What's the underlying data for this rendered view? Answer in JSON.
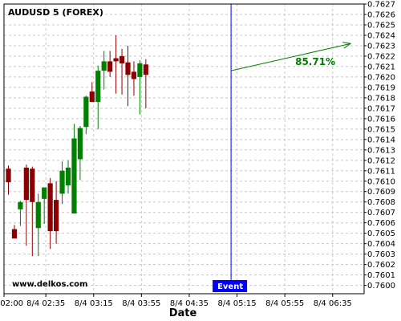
{
  "chart_data": {
    "type": "candlestick",
    "title": "AUDUSD 5 (FOREX)",
    "xlabel": "Date",
    "ylabel": "",
    "ylim": [
      0.75992,
      0.7627
    ],
    "y_ticks": [
      "0.7627",
      "0.7626",
      "0.7625",
      "0.7624",
      "0.7623",
      "0.7622",
      "0.7621",
      "0.7620",
      "0.7619",
      "0.7618",
      "0.7617",
      "0.7616",
      "0.7615",
      "0.7614",
      "0.7613",
      "0.7612",
      "0.7611",
      "0.7610",
      "0.7609",
      "0.7608",
      "0.7607",
      "0.7606",
      "0.7605",
      "0.7604",
      "0.7603",
      "0.7602",
      "0.7601",
      "0.7600"
    ],
    "x_ticks": [
      "8/4 02:00",
      "8/4 02:35",
      "8/4 03:15",
      "8/4 03:55",
      "8/4 04:35",
      "8/4 05:15",
      "8/4 05:55",
      "8/4 06:35"
    ],
    "grid": true,
    "colors": {
      "bull": "#008000",
      "bear": "#8b0000",
      "grid": "#c8c8c8",
      "event": "#0000ff",
      "arrow": "#008000"
    },
    "candles": [
      {
        "o": 0.76112,
        "h": 0.76115,
        "l": 0.76087,
        "c": 0.76099
      },
      {
        "o": 0.76054,
        "h": 0.76058,
        "l": 0.76045,
        "c": 0.76045
      },
      {
        "o": 0.76073,
        "h": 0.76081,
        "l": 0.76057,
        "c": 0.7608
      },
      {
        "o": 0.76113,
        "h": 0.76116,
        "l": 0.76038,
        "c": 0.76082
      },
      {
        "o": 0.76112,
        "h": 0.76114,
        "l": 0.76028,
        "c": 0.7608
      },
      {
        "o": 0.76055,
        "h": 0.76088,
        "l": 0.76028,
        "c": 0.7608
      },
      {
        "o": 0.76083,
        "h": 0.76094,
        "l": 0.76059,
        "c": 0.76094
      },
      {
        "o": 0.76098,
        "h": 0.76103,
        "l": 0.76035,
        "c": 0.76052
      },
      {
        "o": 0.76082,
        "h": 0.761,
        "l": 0.7604,
        "c": 0.76052
      },
      {
        "o": 0.76088,
        "h": 0.76119,
        "l": 0.76078,
        "c": 0.7611
      },
      {
        "o": 0.76096,
        "h": 0.7612,
        "l": 0.76088,
        "c": 0.76113
      },
      {
        "o": 0.76069,
        "h": 0.76155,
        "l": 0.76069,
        "c": 0.76141
      },
      {
        "o": 0.76121,
        "h": 0.76153,
        "l": 0.76101,
        "c": 0.76151
      },
      {
        "o": 0.76152,
        "h": 0.76182,
        "l": 0.76145,
        "c": 0.76181
      },
      {
        "o": 0.76186,
        "h": 0.76195,
        "l": 0.76176,
        "c": 0.76176
      },
      {
        "o": 0.76176,
        "h": 0.76211,
        "l": 0.7615,
        "c": 0.76206
      },
      {
        "o": 0.76206,
        "h": 0.76225,
        "l": 0.76188,
        "c": 0.76215
      },
      {
        "o": 0.76215,
        "h": 0.76225,
        "l": 0.762,
        "c": 0.76205
      },
      {
        "o": 0.76218,
        "h": 0.7624,
        "l": 0.76184,
        "c": 0.76215
      },
      {
        "o": 0.7622,
        "h": 0.76227,
        "l": 0.76183,
        "c": 0.76213
      },
      {
        "o": 0.76214,
        "h": 0.7623,
        "l": 0.76172,
        "c": 0.76202
      },
      {
        "o": 0.76205,
        "h": 0.76215,
        "l": 0.76182,
        "c": 0.76198
      },
      {
        "o": 0.762,
        "h": 0.76216,
        "l": 0.76164,
        "c": 0.76213
      },
      {
        "o": 0.76212,
        "h": 0.76217,
        "l": 0.7617,
        "c": 0.76202
      }
    ],
    "event": {
      "label": "Event",
      "x_time": "8/4 05:10"
    },
    "projection": {
      "label": "85.71%",
      "start": {
        "time": "8/4 05:10",
        "price": 0.76206
      },
      "end": {
        "time": "8/4 06:50",
        "price": 0.76232
      }
    },
    "watermark": "www.delkos.com"
  }
}
